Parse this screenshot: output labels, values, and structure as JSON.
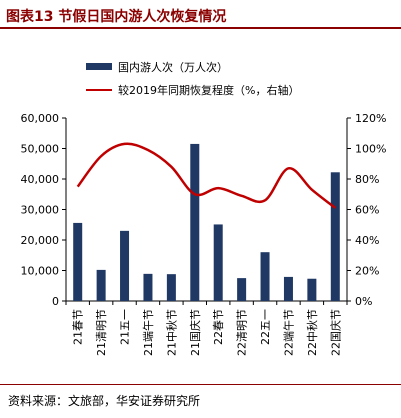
{
  "title": "图表13  节假日国内游人次恢复情况",
  "source": "资料来源：文旅部，华安证券研究所",
  "colors": {
    "bar": "#1f3864",
    "line": "#c00000",
    "accent": "#8b0000"
  },
  "chart_data": {
    "type": "bar",
    "categories": [
      "21春节",
      "21清明节",
      "21五一",
      "21端午节",
      "21中秋节",
      "21国庆节",
      "22春节",
      "22清明节",
      "22五一",
      "22端午节",
      "22中秋节",
      "22国庆节"
    ],
    "series": [
      {
        "name": "国内游人次（万人次）",
        "type": "bar",
        "axis": "left",
        "values": [
          25600,
          10200,
          23000,
          8900,
          8800,
          51500,
          25100,
          7500,
          16000,
          7900,
          7300,
          42200
        ]
      },
      {
        "name": "较2019年同期恢复程度（%，右轴）",
        "type": "line",
        "axis": "right",
        "values": [
          0.75,
          0.95,
          1.03,
          0.99,
          0.88,
          0.7,
          0.74,
          0.69,
          0.66,
          0.87,
          0.73,
          0.61
        ]
      }
    ],
    "y_left": {
      "min": 0,
      "max": 60000,
      "ticks": [
        "0",
        "10,000",
        "20,000",
        "30,000",
        "40,000",
        "50,000",
        "60,000"
      ]
    },
    "y_right": {
      "min": 0,
      "max": 1.2,
      "ticks": [
        "0%",
        "20%",
        "40%",
        "60%",
        "80%",
        "100%",
        "120%"
      ]
    },
    "legend": {
      "position": "top"
    },
    "grid": false
  }
}
